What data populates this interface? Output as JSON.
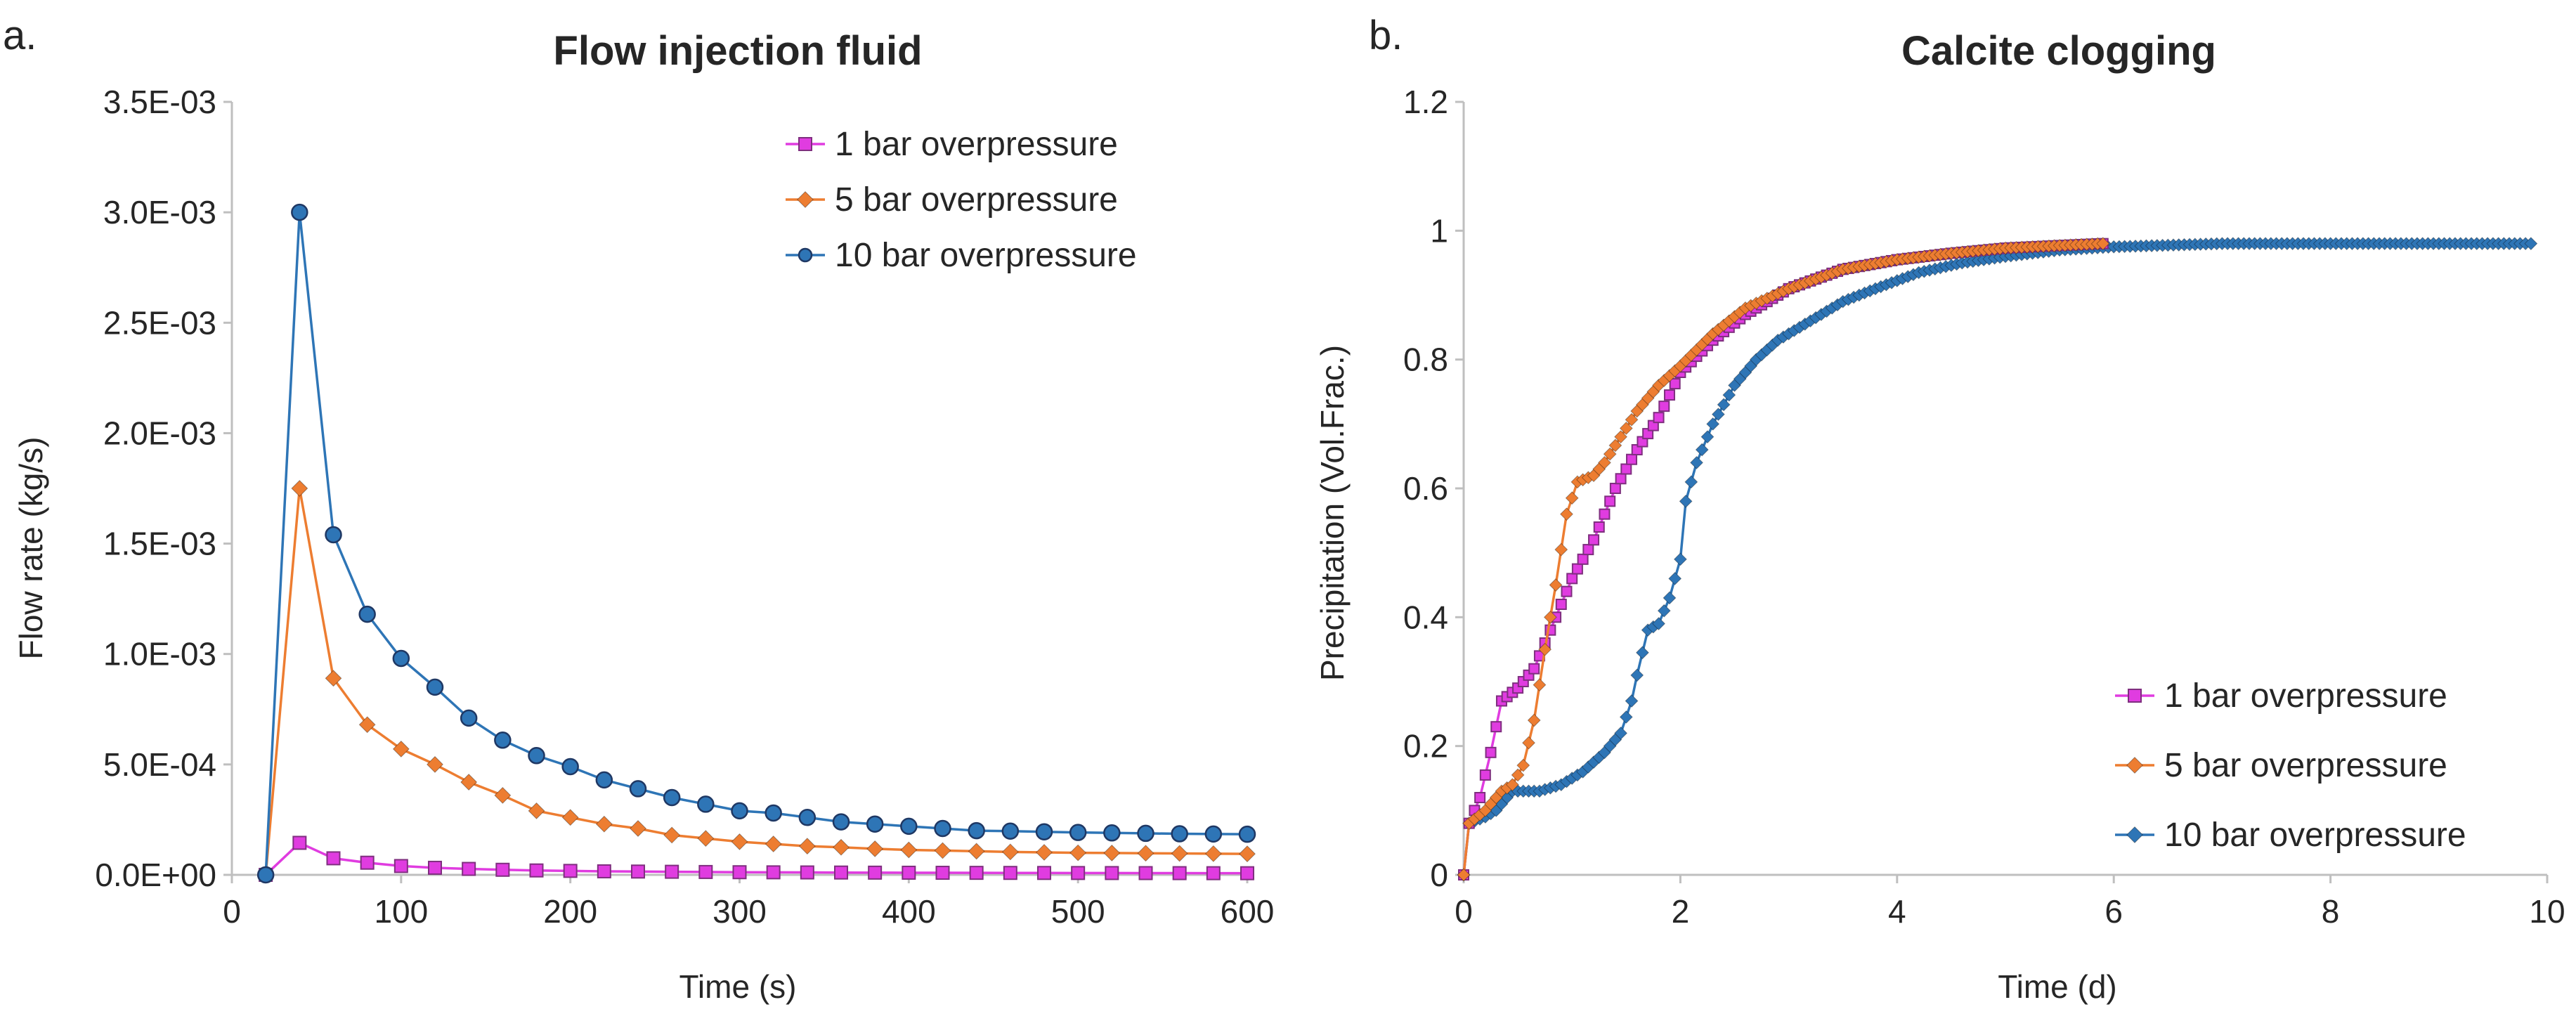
{
  "colors": {
    "series_1bar": "#E03CE0",
    "series_5bar": "#ED7D31",
    "series_10bar": "#2E75B6",
    "axis": "#BFBFBF",
    "text": "#262626"
  },
  "chart_data": [
    {
      "panel": "a.",
      "type": "line",
      "title": "Flow injection fluid",
      "xlabel": "Time (s)",
      "ylabel": "Flow rate (kg/s)",
      "xlim": [
        0,
        600
      ],
      "ylim": [
        0,
        0.0035
      ],
      "xticks": [
        0,
        100,
        200,
        300,
        400,
        500,
        600
      ],
      "xtick_labels": [
        "0",
        "100",
        "200",
        "300",
        "400",
        "500",
        "600"
      ],
      "yticks": [
        0,
        0.0005,
        0.001,
        0.0015,
        0.002,
        0.0025,
        0.003,
        0.0035
      ],
      "ytick_labels": [
        "0.0E+00",
        "5.0E-04",
        "1.0E-03",
        "1.5E-03",
        "2.0E-03",
        "2.5E-03",
        "3.0E-03",
        "3.5E-03"
      ],
      "grid": false,
      "legend_position": "top-right",
      "x": [
        20,
        40,
        60,
        80,
        100,
        120,
        140,
        160,
        180,
        200,
        220,
        240,
        260,
        280,
        300,
        320,
        340,
        360,
        380,
        400,
        420,
        440,
        460,
        480,
        500,
        520,
        540,
        560,
        580,
        600
      ],
      "series": [
        {
          "name": "1 bar overpressure",
          "marker": "square",
          "color_key": "series_1bar",
          "values": [
            0,
            0.000145,
            7.5e-05,
            5.5e-05,
            4e-05,
            3.2e-05,
            2.7e-05,
            2.3e-05,
            2e-05,
            1.8e-05,
            1.6e-05,
            1.5e-05,
            1.4e-05,
            1.3e-05,
            1.2e-05,
            1.15e-05,
            1.1e-05,
            1.05e-05,
            1e-05,
            9.7e-06,
            9.4e-06,
            9.1e-06,
            8.8e-06,
            8.6e-06,
            8.4e-06,
            8.2e-06,
            8e-06,
            7.8e-06,
            7.6e-06,
            7.5e-06
          ]
        },
        {
          "name": "5 bar overpressure",
          "marker": "diamond",
          "color_key": "series_5bar",
          "values": [
            0,
            0.00175,
            0.00089,
            0.00068,
            0.00057,
            0.0005,
            0.00042,
            0.00036,
            0.00029,
            0.00026,
            0.00023,
            0.00021,
            0.00018,
            0.000165,
            0.00015,
            0.00014,
            0.00013,
            0.000125,
            0.000118,
            0.000113,
            0.00011,
            0.000107,
            0.000104,
            0.000102,
            0.0001,
            9.9e-05,
            9.8e-05,
            9.7e-05,
            9.6e-05,
            9.5e-05
          ]
        },
        {
          "name": "10 bar overpressure",
          "marker": "circle",
          "color_key": "series_10bar",
          "values": [
            0,
            0.003,
            0.00154,
            0.00118,
            0.00098,
            0.00085,
            0.00071,
            0.00061,
            0.00054,
            0.00049,
            0.00043,
            0.00039,
            0.00035,
            0.00032,
            0.00029,
            0.00028,
            0.00026,
            0.00024,
            0.00023,
            0.00022,
            0.00021,
            0.0002,
            0.000198,
            0.000195,
            0.000192,
            0.00019,
            0.000188,
            0.000186,
            0.000185,
            0.000184
          ]
        }
      ]
    },
    {
      "panel": "b.",
      "type": "line",
      "title": "Calcite clogging",
      "xlabel": "Time (d)",
      "ylabel": "Precipitation (Vol.Frac.)",
      "xlim": [
        0,
        10
      ],
      "ylim": [
        0,
        1.2
      ],
      "xticks": [
        0,
        2,
        4,
        6,
        8,
        10
      ],
      "xtick_labels": [
        "0",
        "2",
        "4",
        "6",
        "8",
        "10"
      ],
      "yticks": [
        0,
        0.2,
        0.4,
        0.6,
        0.8,
        1,
        1.2
      ],
      "ytick_labels": [
        "0",
        "0.2",
        "0.4",
        "0.6",
        "0.8",
        "1",
        "1.2"
      ],
      "grid": false,
      "legend_position": "bottom-right",
      "marker_step_days": 0.05,
      "series": [
        {
          "name": "1 bar overpressure",
          "marker": "square",
          "color_key": "series_1bar",
          "x_end": 5.9,
          "x": [
            0,
            0.05,
            0.15,
            0.25,
            0.35,
            0.5,
            0.65,
            0.8,
            1.0,
            1.2,
            1.4,
            1.6,
            1.8,
            2.0,
            2.3,
            2.6,
            3.0,
            3.5,
            4.0,
            4.5,
            5.0,
            5.5,
            5.9
          ],
          "values": [
            0,
            0.08,
            0.12,
            0.19,
            0.27,
            0.29,
            0.32,
            0.38,
            0.46,
            0.52,
            0.6,
            0.66,
            0.71,
            0.78,
            0.83,
            0.87,
            0.91,
            0.94,
            0.955,
            0.965,
            0.973,
            0.977,
            0.98
          ]
        },
        {
          "name": "5 bar overpressure",
          "marker": "diamond",
          "color_key": "series_5bar",
          "x_end": 5.9,
          "x": [
            0,
            0.05,
            0.2,
            0.35,
            0.45,
            0.55,
            0.65,
            0.75,
            0.85,
            0.95,
            1.05,
            1.2,
            1.3,
            1.45,
            1.6,
            1.8,
            2.0,
            2.3,
            2.6,
            3.0,
            3.5,
            4.0,
            4.5,
            5.0,
            5.5,
            5.9
          ],
          "values": [
            0,
            0.08,
            0.1,
            0.13,
            0.14,
            0.17,
            0.24,
            0.35,
            0.45,
            0.56,
            0.61,
            0.62,
            0.64,
            0.68,
            0.72,
            0.76,
            0.79,
            0.84,
            0.88,
            0.91,
            0.94,
            0.955,
            0.965,
            0.973,
            0.977,
            0.98
          ]
        },
        {
          "name": "10 bar overpressure",
          "marker": "diamond",
          "color_key": "series_10bar",
          "x_end": 9.85,
          "x": [
            0,
            0.05,
            0.2,
            0.3,
            0.45,
            0.7,
            0.9,
            1.1,
            1.3,
            1.45,
            1.55,
            1.6,
            1.7,
            1.8,
            1.9,
            2.0,
            2.05,
            2.15,
            2.3,
            2.5,
            2.7,
            2.9,
            3.2,
            3.5,
            3.8,
            4.2,
            4.6,
            5.0,
            5.5,
            6.0,
            7.0,
            8.0,
            9.0,
            9.85
          ],
          "values": [
            0,
            0.08,
            0.09,
            0.1,
            0.13,
            0.13,
            0.14,
            0.16,
            0.19,
            0.22,
            0.27,
            0.31,
            0.38,
            0.39,
            0.43,
            0.49,
            0.58,
            0.64,
            0.7,
            0.76,
            0.8,
            0.83,
            0.86,
            0.89,
            0.91,
            0.935,
            0.95,
            0.96,
            0.97,
            0.975,
            0.98,
            0.98,
            0.98,
            0.98
          ]
        }
      ]
    }
  ]
}
